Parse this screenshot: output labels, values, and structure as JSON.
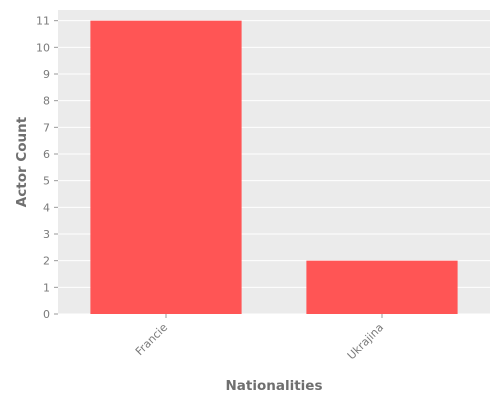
{
  "chart_data": {
    "type": "bar",
    "categories": [
      "Francie",
      "Ukrajina"
    ],
    "values": [
      11,
      2
    ],
    "xlabel": "Nationalities",
    "ylabel": "Actor Count",
    "ylim": [
      0,
      11.4
    ],
    "yticks": [
      0,
      1,
      2,
      3,
      4,
      5,
      6,
      7,
      8,
      9,
      10,
      11
    ],
    "grid": true,
    "legend": "none",
    "colors": {
      "bar": "#ff5555",
      "plot_background": "#ebebeb",
      "grid": "#ffffff",
      "tick_text": "#7a7a7a",
      "axis_title": "#6f6f6f"
    }
  }
}
